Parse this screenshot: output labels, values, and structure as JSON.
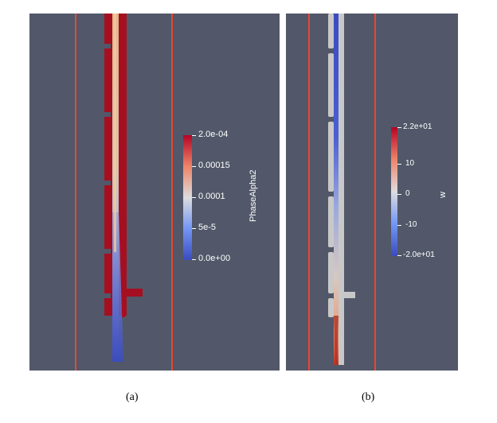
{
  "panel_a": {
    "caption": "(a)",
    "colorbar": {
      "title": "PhaseAlpha2",
      "ticks": [
        "2.0e-04",
        "0.00015",
        "0.0001",
        "5e-5",
        "0.0e+00"
      ],
      "colors": [
        "#b40426",
        "#ee8468",
        "#dddddd",
        "#7396f5",
        "#3b4cc0"
      ]
    }
  },
  "panel_b": {
    "caption": "(b)",
    "colorbar": {
      "title": "w",
      "ticks": [
        "2.2e+01",
        "10",
        "0",
        "-10",
        "-2.0e+01"
      ],
      "colors": [
        "#b40426",
        "#ee8468",
        "#dddddd",
        "#7396f5",
        "#3b4cc0"
      ]
    }
  },
  "colors": {
    "background": "#525869",
    "wall_line": "#e8472f",
    "liquid_red": "#a50f20",
    "nozzle_grey": "#c8c8c8",
    "core_blue": "#3b4cc0"
  }
}
